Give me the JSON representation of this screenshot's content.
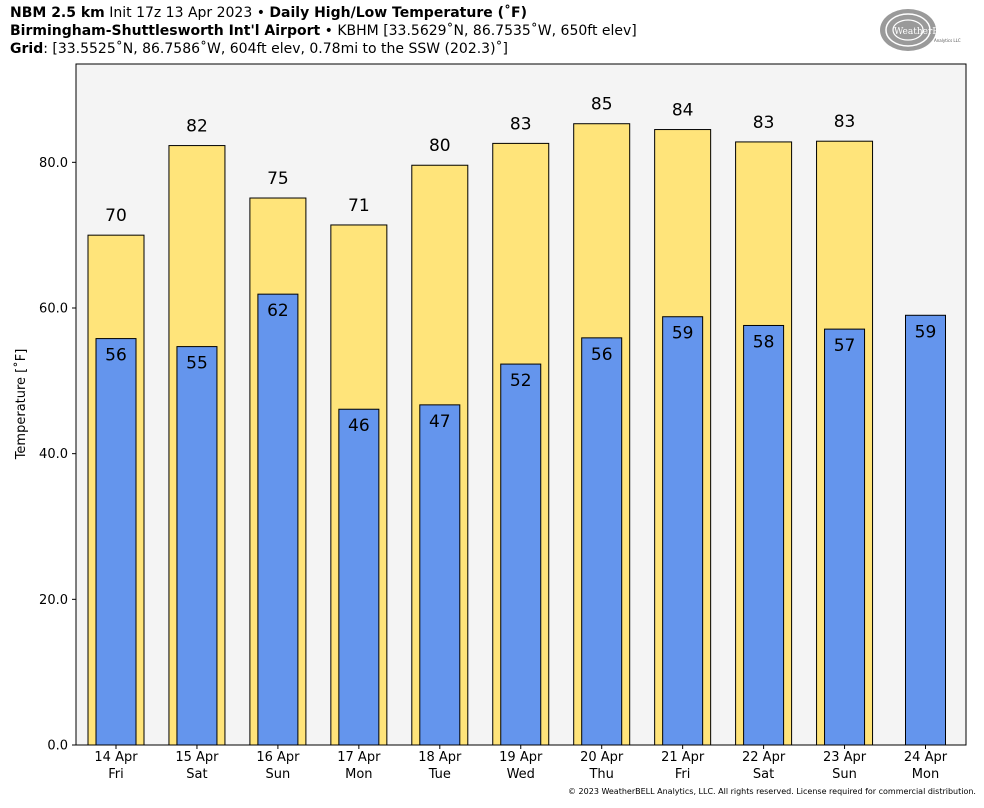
{
  "header": {
    "line1_bold_a": "NBM 2.5 km",
    "line1_normal": " Init 17z 13 Apr 2023 • ",
    "line1_bold_b": "Daily High/Low Temperature (˚F)",
    "line2_bold": "Birmingham-Shuttlesworth Int'l Airport",
    "line2_normal": " • KBHM [33.5629˚N, 86.7535˚W, 650ft elev]",
    "line3_bold": "Grid",
    "line3_normal": ": [33.5525˚N, 86.7586˚W, 604ft elev, 0.78mi to the SSW (202.3)˚]"
  },
  "logo": {
    "text_main": "WeatherBELL",
    "text_sub": "Analytics LLC"
  },
  "copyright": "© 2023 WeatherBELL Analytics, LLC. All rights reserved. License required for commercial distribution.",
  "colors": {
    "high_bar": "#FFE47A",
    "low_bar": "#6495ED",
    "plot_bg": "#F4F4F4"
  },
  "chart_data": {
    "type": "bar",
    "ylabel": "Temperature [˚F]",
    "ylim": [
      0,
      93.5
    ],
    "yticks": [
      0,
      20,
      40,
      60,
      80
    ],
    "ytick_labels": [
      "0.0",
      "20.0",
      "40.0",
      "60.0",
      "80.0"
    ],
    "grid": false,
    "categories": [
      {
        "date": "14 Apr",
        "day": "Fri"
      },
      {
        "date": "15 Apr",
        "day": "Sat"
      },
      {
        "date": "16 Apr",
        "day": "Sun"
      },
      {
        "date": "17 Apr",
        "day": "Mon"
      },
      {
        "date": "18 Apr",
        "day": "Tue"
      },
      {
        "date": "19 Apr",
        "day": "Wed"
      },
      {
        "date": "20 Apr",
        "day": "Thu"
      },
      {
        "date": "21 Apr",
        "day": "Fri"
      },
      {
        "date": "22 Apr",
        "day": "Sat"
      },
      {
        "date": "23 Apr",
        "day": "Sun"
      },
      {
        "date": "24 Apr",
        "day": "Mon"
      }
    ],
    "series": [
      {
        "name": "High",
        "values": [
          70.0,
          82.3,
          75.1,
          71.4,
          79.6,
          82.6,
          85.3,
          84.5,
          82.8,
          82.9,
          null
        ],
        "labels": [
          "70",
          "82",
          "75",
          "71",
          "80",
          "83",
          "85",
          "84",
          "83",
          "83",
          ""
        ]
      },
      {
        "name": "Low",
        "values": [
          55.8,
          54.7,
          61.9,
          46.1,
          46.7,
          52.3,
          55.9,
          58.8,
          57.6,
          57.1,
          59.0
        ],
        "labels": [
          "56",
          "55",
          "62",
          "46",
          "47",
          "52",
          "56",
          "59",
          "58",
          "57",
          "59"
        ]
      }
    ]
  }
}
